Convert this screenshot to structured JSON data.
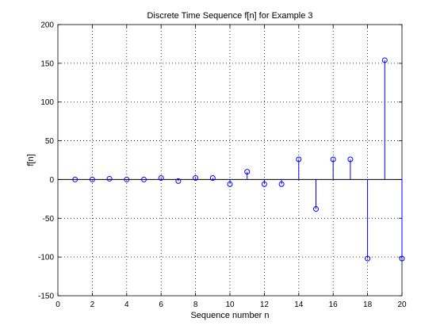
{
  "chart_data": {
    "type": "stem",
    "title": "Discrete Time Sequence f[n] for Example 3",
    "xlabel": "Sequence number n",
    "ylabel": "f[n]",
    "xlim": [
      0,
      20
    ],
    "ylim": [
      -150,
      200
    ],
    "xticks": [
      0,
      2,
      4,
      6,
      8,
      10,
      12,
      14,
      16,
      18,
      20
    ],
    "yticks": [
      -150,
      -100,
      -50,
      0,
      50,
      100,
      150,
      200
    ],
    "grid": true,
    "x": [
      1,
      2,
      3,
      4,
      5,
      6,
      7,
      8,
      9,
      10,
      11,
      12,
      13,
      14,
      15,
      16,
      17,
      18,
      19,
      20
    ],
    "y": [
      0,
      0,
      1,
      0,
      0,
      2,
      -2,
      2,
      2,
      -6,
      10,
      -6,
      -6,
      26,
      -38,
      26,
      26,
      -102,
      154,
      -102
    ],
    "color": "#0000ff"
  }
}
